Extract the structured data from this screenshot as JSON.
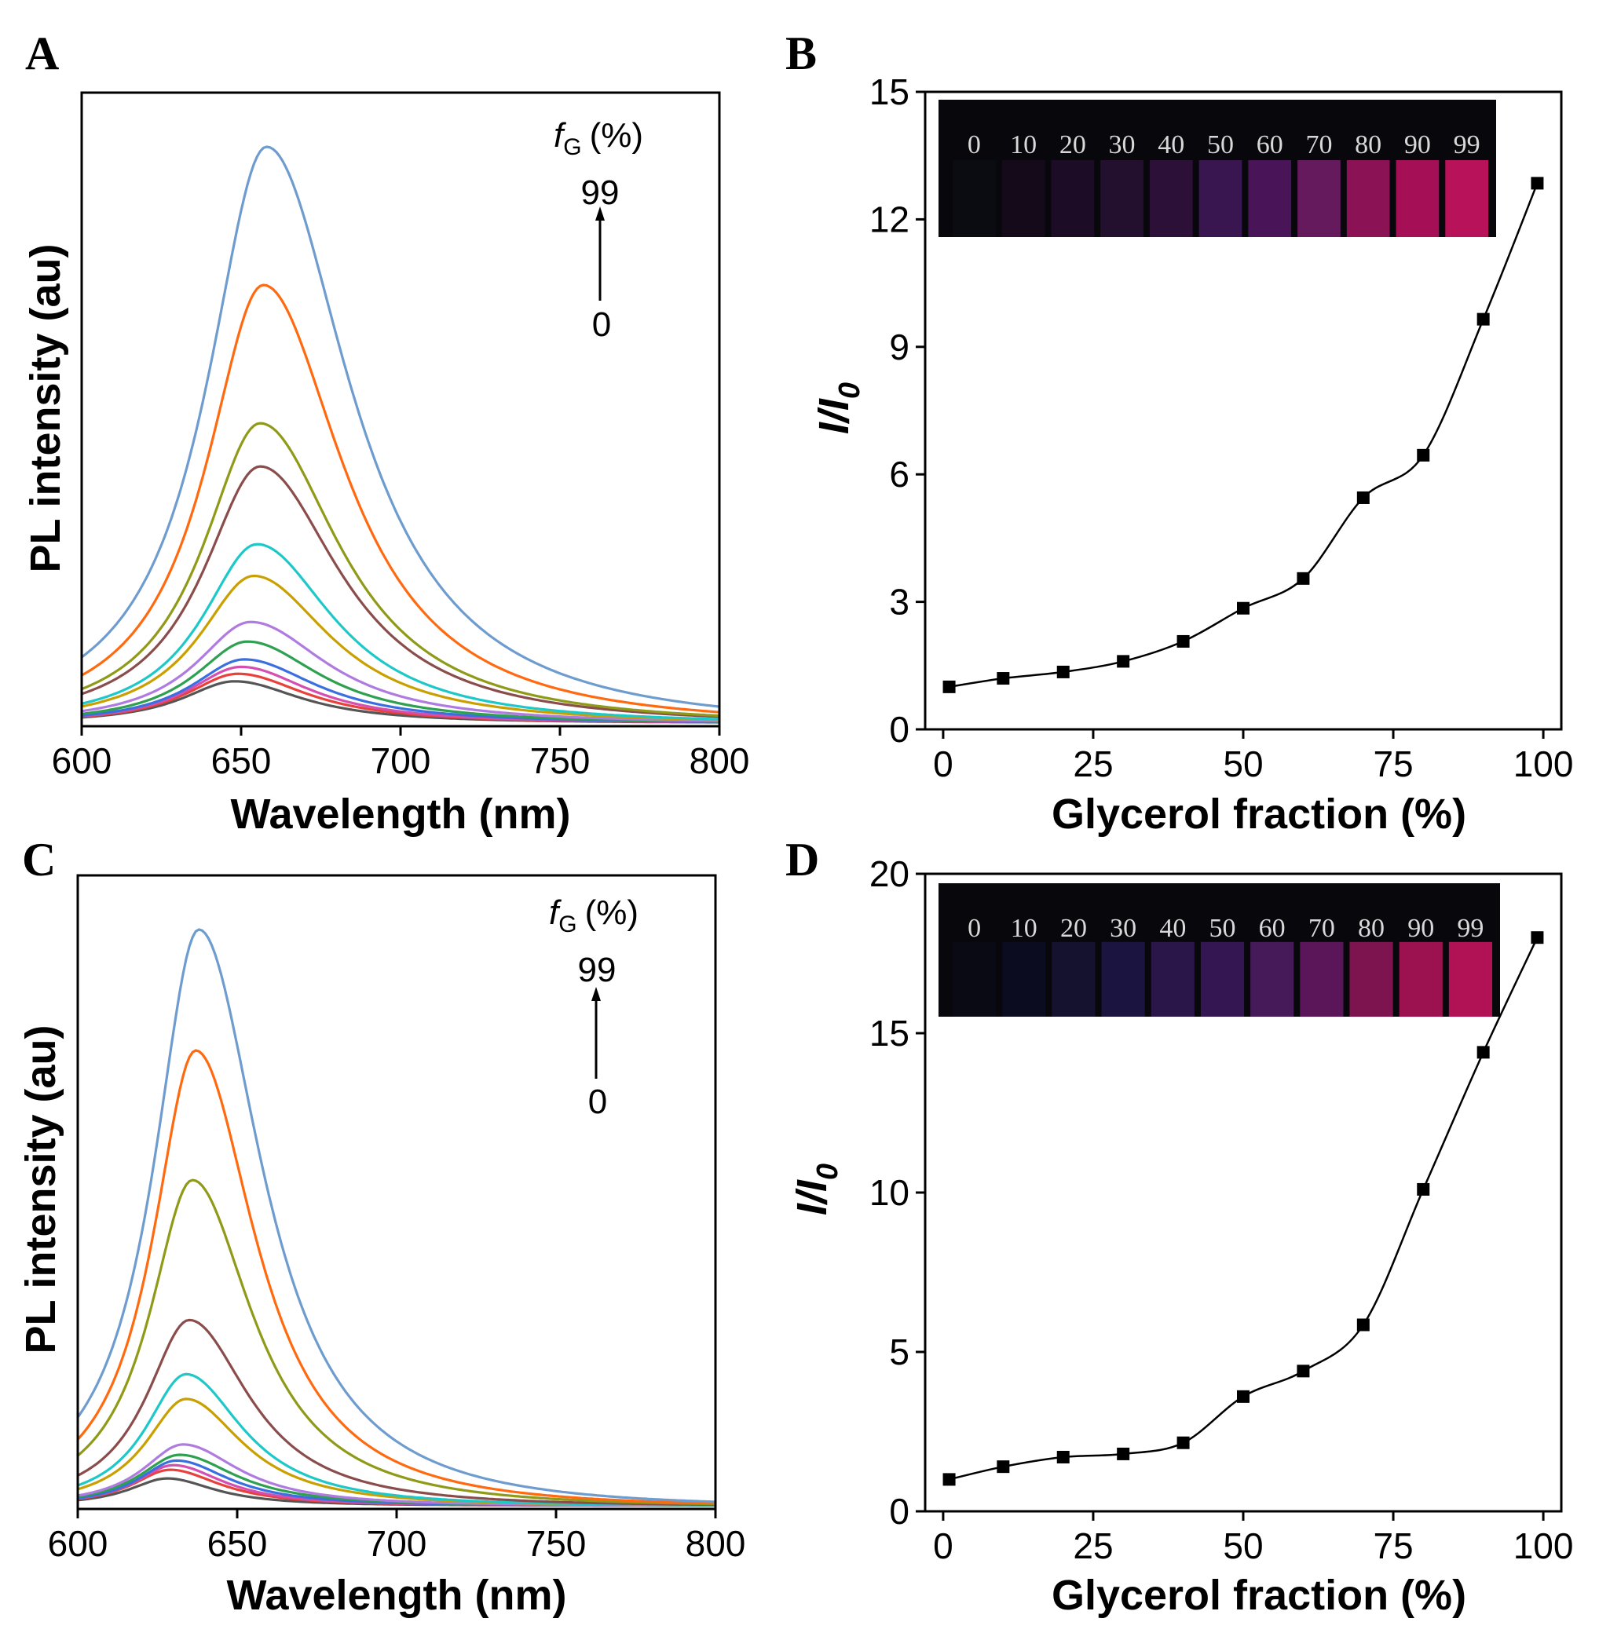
{
  "panels": [
    {
      "letter": "A",
      "chart_data": {
        "type": "line",
        "xlabel": "Wavelength (nm)",
        "ylabel": "PL intensity (au)",
        "xlim": [
          600,
          800
        ],
        "xticks": [
          "600",
          "650",
          "700",
          "750",
          "800"
        ],
        "ylim": [
          0,
          1.1
        ],
        "yticks_shown": false,
        "legend": {
          "title": "(%)",
          "title_symbol": "f",
          "title_sub": "G",
          "top": "99",
          "bottom": "0",
          "placement": "top-right"
        },
        "series": [
          {
            "color": "#555555",
            "peak_x": 648,
            "peak_y": 0.072,
            "width": 22,
            "tail": 0.92
          },
          {
            "color": "#e8413c",
            "peak_x": 649,
            "peak_y": 0.085,
            "width": 22,
            "tail": 0.95
          },
          {
            "color": "#d44fb0",
            "peak_x": 650,
            "peak_y": 0.097,
            "width": 22,
            "tail": 0.95
          },
          {
            "color": "#3a6fe0",
            "peak_x": 651,
            "peak_y": 0.11,
            "width": 22,
            "tail": 1.0
          },
          {
            "color": "#2ea050",
            "peak_x": 652,
            "peak_y": 0.141,
            "width": 22,
            "tail": 1.0
          },
          {
            "color": "#b07be0",
            "peak_x": 653,
            "peak_y": 0.175,
            "width": 23,
            "tail": 1.0
          },
          {
            "color": "#c9a000",
            "peak_x": 654,
            "peak_y": 0.255,
            "width": 23,
            "tail": 1.0
          },
          {
            "color": "#1ec8c8",
            "peak_x": 655,
            "peak_y": 0.31,
            "width": 23,
            "tail": 1.0
          },
          {
            "color": "#8b4c4c",
            "peak_x": 656,
            "peak_y": 0.445,
            "width": 24,
            "tail": 1.0
          },
          {
            "color": "#8f9a18",
            "peak_x": 656,
            "peak_y": 0.52,
            "width": 24,
            "tail": 1.0
          },
          {
            "color": "#ff6a10",
            "peak_x": 657,
            "peak_y": 0.76,
            "width": 24,
            "tail": 1.0
          },
          {
            "color": "#6f9ccf",
            "peak_x": 658,
            "peak_y": 1.0,
            "width": 25,
            "tail": 1.0
          }
        ]
      }
    },
    {
      "letter": "B",
      "inset": {
        "labels": [
          "0",
          "10",
          "20",
          "30",
          "40",
          "50",
          "60",
          "70",
          "80",
          "90",
          "99"
        ]
      },
      "chart_data": {
        "type": "line",
        "xlabel": "Glycerol fraction (%)",
        "ylabel": "I/I0",
        "ylabel_main": "I/I",
        "ylabel_sub": "0",
        "xlim": [
          -3,
          103
        ],
        "ylim": [
          0,
          15
        ],
        "xticks": [
          0,
          25,
          50,
          75,
          100
        ],
        "yticks": [
          0,
          3,
          6,
          9,
          12,
          15
        ],
        "x": [
          1,
          10,
          20,
          30,
          40,
          50,
          60,
          70,
          80,
          90,
          99
        ],
        "y": [
          1.0,
          1.2,
          1.35,
          1.6,
          2.07,
          2.85,
          3.55,
          5.45,
          6.45,
          9.65,
          12.85
        ]
      }
    },
    {
      "letter": "C",
      "chart_data": {
        "type": "line",
        "xlabel": "Wavelength (nm)",
        "ylabel": "PL intensity (au)",
        "xlim": [
          600,
          800
        ],
        "xticks": [
          "600",
          "650",
          "700",
          "750",
          "800"
        ],
        "ylim": [
          0,
          1.1
        ],
        "yticks_shown": false,
        "legend": {
          "title": "(%)",
          "title_symbol": "f",
          "title_sub": "G",
          "top": "99",
          "bottom": "0",
          "placement": "top-right"
        },
        "series": [
          {
            "color": "#555555",
            "peak_x": 628,
            "peak_y": 0.047,
            "width": 16,
            "tail": 0.9
          },
          {
            "color": "#e8413c",
            "peak_x": 629,
            "peak_y": 0.062,
            "width": 16,
            "tail": 0.95
          },
          {
            "color": "#d44fb0",
            "peak_x": 630,
            "peak_y": 0.07,
            "width": 16,
            "tail": 0.95
          },
          {
            "color": "#3a6fe0",
            "peak_x": 631,
            "peak_y": 0.078,
            "width": 16,
            "tail": 1.0
          },
          {
            "color": "#2ea050",
            "peak_x": 632,
            "peak_y": 0.088,
            "width": 17,
            "tail": 1.0
          },
          {
            "color": "#b07be0",
            "peak_x": 633,
            "peak_y": 0.106,
            "width": 17,
            "tail": 1.0
          },
          {
            "color": "#c9a000",
            "peak_x": 634,
            "peak_y": 0.185,
            "width": 17,
            "tail": 1.0
          },
          {
            "color": "#1ec8c8",
            "peak_x": 634,
            "peak_y": 0.228,
            "width": 17,
            "tail": 1.0
          },
          {
            "color": "#8b4c4c",
            "peak_x": 635,
            "peak_y": 0.322,
            "width": 18,
            "tail": 1.0
          },
          {
            "color": "#8f9a18",
            "peak_x": 636,
            "peak_y": 0.565,
            "width": 18,
            "tail": 1.0
          },
          {
            "color": "#ff6a10",
            "peak_x": 637,
            "peak_y": 0.79,
            "width": 18,
            "tail": 1.0
          },
          {
            "color": "#6f9ccf",
            "peak_x": 638,
            "peak_y": 1.0,
            "width": 19,
            "tail": 1.0
          }
        ]
      }
    },
    {
      "letter": "D",
      "inset": {
        "labels": [
          "0",
          "10",
          "20",
          "30",
          "40",
          "50",
          "60",
          "70",
          "80",
          "90",
          "99"
        ]
      },
      "chart_data": {
        "type": "line",
        "xlabel": "Glycerol fraction (%)",
        "ylabel": "I/I0",
        "ylabel_main": "I/I",
        "ylabel_sub": "0",
        "xlim": [
          -3,
          103
        ],
        "ylim": [
          0,
          20
        ],
        "xticks": [
          0,
          25,
          50,
          75,
          100
        ],
        "yticks": [
          0,
          5,
          10,
          15,
          20
        ],
        "x": [
          1,
          10,
          20,
          30,
          40,
          50,
          60,
          70,
          80,
          90,
          99
        ],
        "y": [
          1.0,
          1.4,
          1.7,
          1.8,
          2.15,
          3.6,
          4.4,
          5.85,
          10.1,
          14.4,
          18.0
        ]
      }
    }
  ]
}
